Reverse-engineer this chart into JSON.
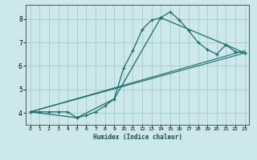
{
  "xlabel": "Humidex (Indice chaleur)",
  "background_color": "#cde8ea",
  "grid_color": "#aacdd0",
  "line_color": "#1a6b6b",
  "xlim": [
    -0.5,
    23.5
  ],
  "ylim": [
    3.5,
    8.6
  ],
  "xticks": [
    0,
    1,
    2,
    3,
    4,
    5,
    6,
    7,
    8,
    9,
    10,
    11,
    12,
    13,
    14,
    15,
    16,
    17,
    18,
    19,
    20,
    21,
    22,
    23
  ],
  "yticks": [
    4,
    5,
    6,
    7,
    8
  ],
  "curve_x": [
    0,
    1,
    2,
    3,
    4,
    5,
    6,
    7,
    8,
    9,
    10,
    11,
    12,
    13,
    14,
    15,
    16,
    17,
    18,
    19,
    20,
    21,
    22,
    23
  ],
  "curve_y": [
    4.05,
    4.05,
    4.05,
    4.05,
    4.05,
    3.8,
    3.9,
    4.05,
    4.3,
    4.6,
    5.9,
    6.65,
    7.55,
    7.95,
    8.05,
    8.3,
    7.95,
    7.5,
    7.0,
    6.7,
    6.5,
    6.9,
    6.6,
    6.55
  ],
  "line2_x": [
    0,
    5,
    9,
    14,
    21,
    23
  ],
  "line2_y": [
    4.05,
    3.8,
    4.6,
    8.05,
    6.9,
    6.55
  ],
  "line3_x": [
    0,
    23
  ],
  "line3_y": [
    4.05,
    6.55
  ],
  "line4_x": [
    0,
    23
  ],
  "line4_y": [
    4.05,
    6.65
  ]
}
